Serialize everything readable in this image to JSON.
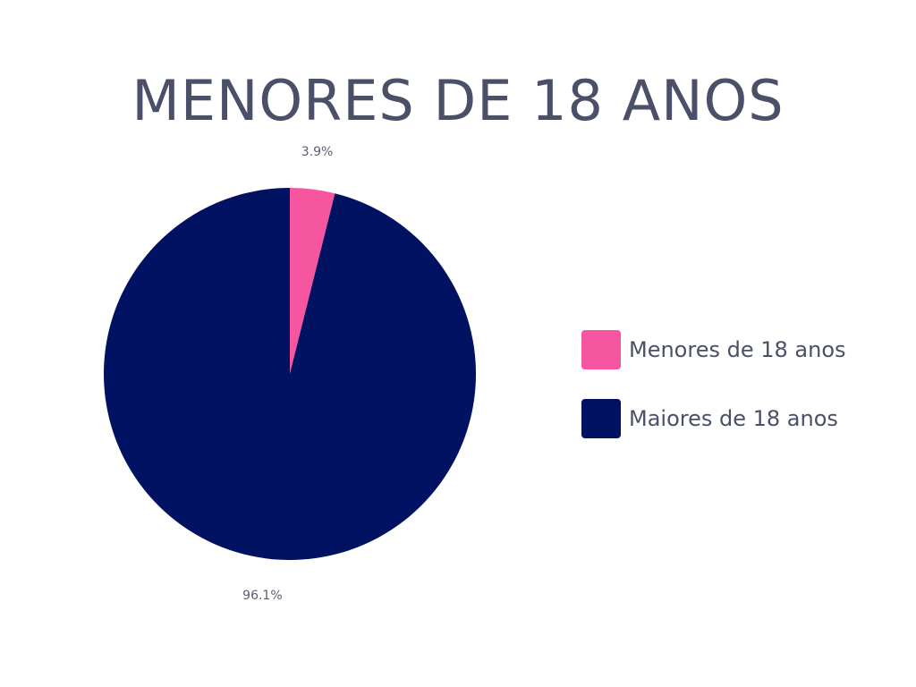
{
  "chart_data": {
    "type": "pie",
    "title": "MENORES DE 18 ANOS",
    "categories": [
      "Menores de 18 anos",
      "Maiores de 18 anos"
    ],
    "values": [
      3.9,
      96.1
    ],
    "value_labels": [
      "3.9%",
      "96.1%"
    ],
    "colors": [
      "#f5569f",
      "#021263"
    ],
    "legend_position": "right"
  },
  "colors": {
    "title_text": "#4a5068",
    "label_text": "#5a5f70",
    "background": "#ffffff"
  }
}
